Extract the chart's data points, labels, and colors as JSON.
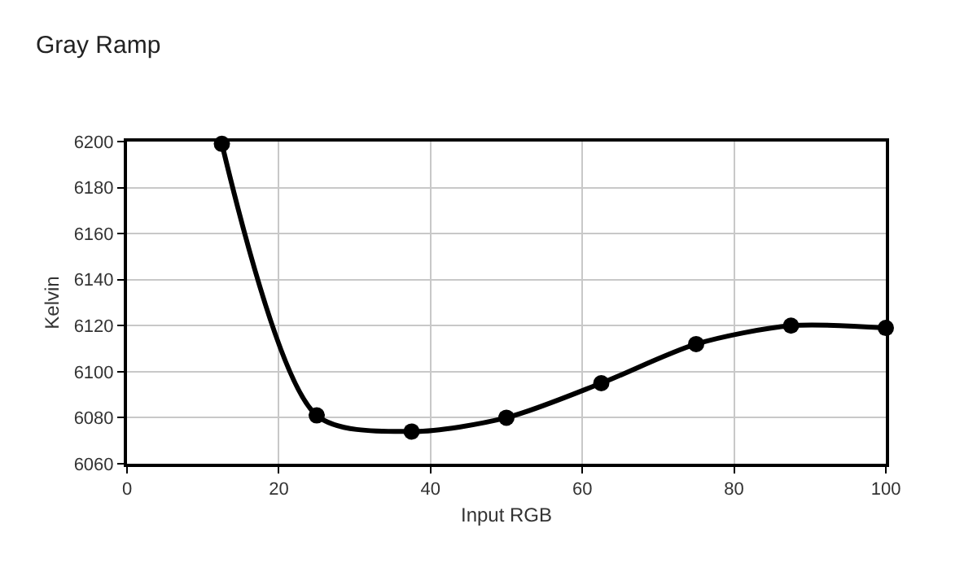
{
  "chart_data": {
    "type": "line",
    "title": "Gray Ramp",
    "xlabel": "Input RGB",
    "ylabel": "Kelvin",
    "x": [
      12.5,
      25,
      37.5,
      50,
      62.5,
      75,
      87.5,
      100
    ],
    "series": [
      {
        "color": "#000000",
        "values": [
          6199,
          6081,
          6074,
          6080,
          6095,
          6112,
          6120,
          6119
        ]
      }
    ],
    "xlim": [
      0,
      100
    ],
    "xticks": [
      0,
      20,
      40,
      60,
      80,
      100
    ],
    "ylim": [
      6060,
      6200
    ],
    "yticks": [
      6060,
      6080,
      6100,
      6120,
      6140,
      6160,
      6180,
      6200
    ],
    "grid": true,
    "marker": "circle",
    "line_style": "solid"
  }
}
